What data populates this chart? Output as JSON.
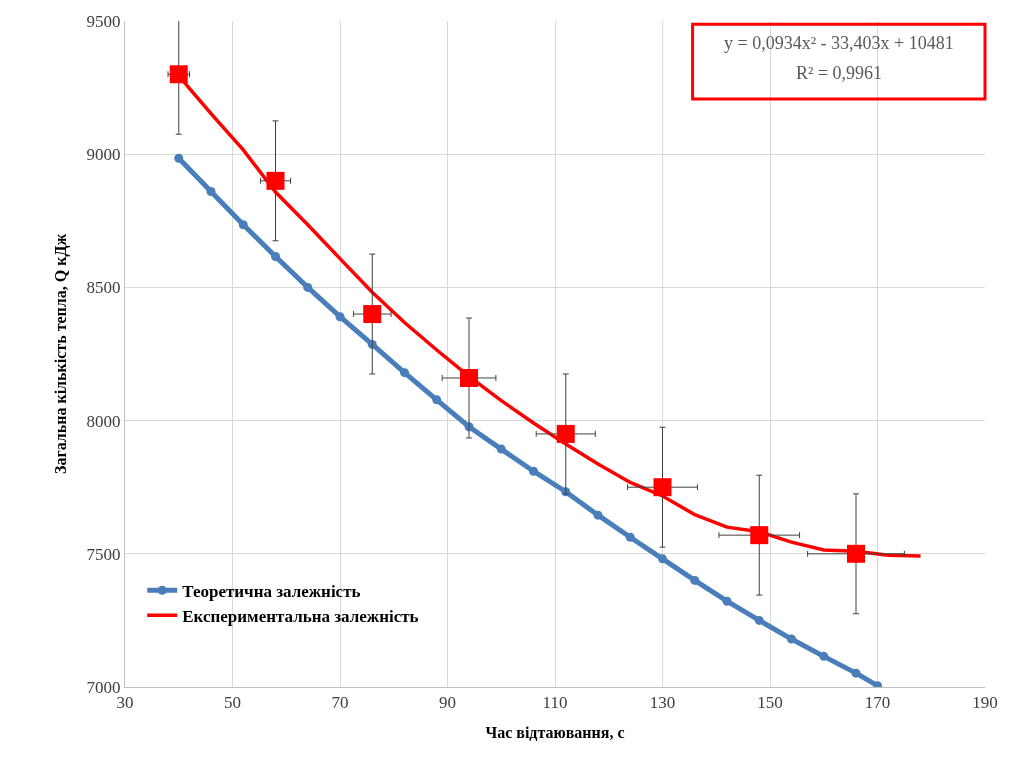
{
  "chart_data": {
    "type": "line",
    "xlabel": "Час відтаювання, с",
    "ylabel": "Загальна кількість тепла, Q кДж",
    "xlim": [
      30,
      190
    ],
    "xticks": [
      30,
      50,
      70,
      90,
      110,
      130,
      150,
      170,
      190
    ],
    "ylim": [
      7000,
      9500
    ],
    "yticks": [
      7000,
      7500,
      8000,
      8500,
      9000,
      9500
    ],
    "grid": true,
    "legend": "bottom left",
    "series": [
      {
        "name": "Теоретична залежність",
        "color": "#4a7ebb",
        "marker": "circle",
        "x": [
          40,
          46,
          52,
          58,
          64,
          70,
          76,
          82,
          88,
          94,
          100,
          106,
          112,
          118,
          124,
          130,
          136,
          142,
          148,
          154,
          160,
          166,
          170
        ],
        "values": [
          8985,
          8860,
          8735,
          8616,
          8500,
          8390,
          8286,
          8180,
          8078,
          7977,
          7893,
          7810,
          7733,
          7645,
          7562,
          7481,
          7400,
          7322,
          7250,
          7180,
          7115,
          7052,
          7005
        ]
      },
      {
        "name": "Експериментальна залежність",
        "color": "#ff0000",
        "marker": "none",
        "x": [
          40,
          46,
          52,
          58,
          64,
          70,
          76,
          82,
          88,
          94,
          100,
          106,
          112,
          118,
          124,
          130,
          136,
          142,
          148,
          154,
          160,
          166,
          172,
          178
        ],
        "values": [
          9294,
          9152,
          9016,
          8858,
          8735,
          8608,
          8482,
          8368,
          8265,
          8166,
          8075,
          7991,
          7912,
          7837,
          7768,
          7717,
          7647,
          7600,
          7583,
          7544,
          7514,
          7510,
          7495,
          7492
        ]
      },
      {
        "type": "scatter",
        "color": "#ff0000",
        "marker": "square",
        "x": [
          40,
          58,
          76,
          94,
          112,
          130,
          148,
          166
        ],
        "values": [
          9300,
          8900,
          8400,
          8160,
          7950,
          7750,
          7570,
          7500
        ],
        "errors": [
          225,
          225,
          225,
          225,
          225,
          225,
          225,
          225
        ],
        "xerrors": [
          2,
          2.8,
          3.5,
          5,
          5.5,
          6.5,
          7.5,
          9
        ]
      }
    ],
    "annotations": [
      "y = 0,0934x² - 33,403x + 10481",
      "R² = 0,9961"
    ]
  }
}
